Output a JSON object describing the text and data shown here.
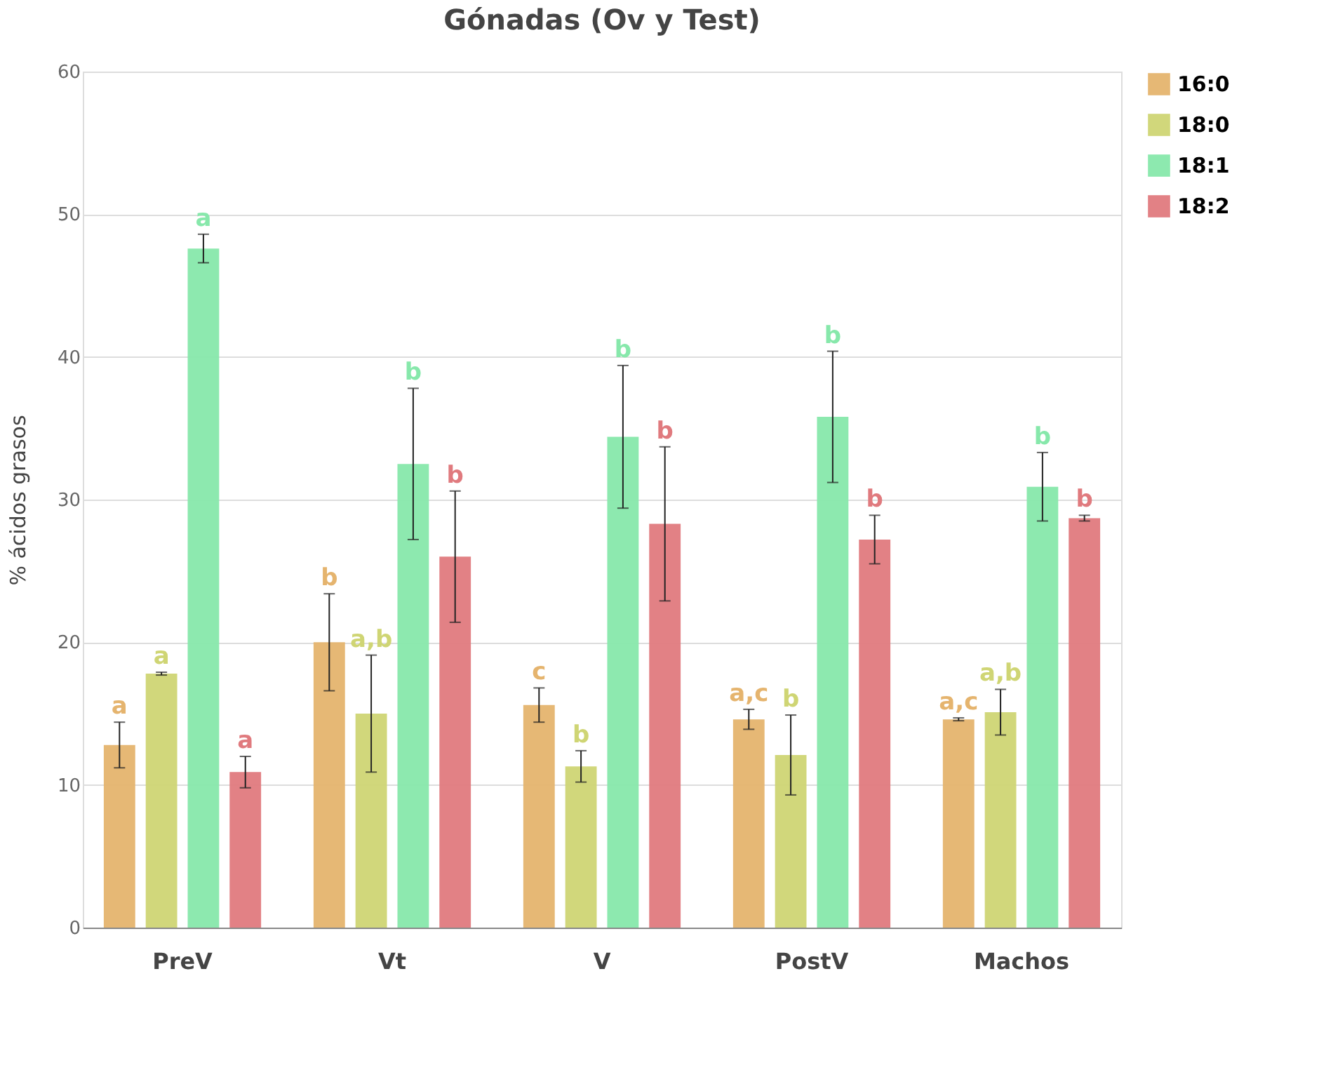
{
  "chart_data": {
    "type": "bar",
    "title": "Gónadas (Ov y Test)",
    "ylabel": "% ácidos grasos",
    "categories": [
      "PreV",
      "Vt",
      "V",
      "PostV",
      "Machos"
    ],
    "series": [
      {
        "name": "16:0",
        "color": "#e5b46e",
        "values": [
          12.8,
          20.0,
          15.6,
          14.6,
          14.6
        ],
        "errors": [
          1.6,
          3.4,
          1.2,
          0.7,
          0.1
        ]
      },
      {
        "name": "18:0",
        "color": "#cfd574",
        "values": [
          17.8,
          15.0,
          11.3,
          12.1,
          15.1
        ],
        "errors": [
          0.1,
          4.1,
          1.1,
          2.8,
          1.6
        ]
      },
      {
        "name": "18:1",
        "color": "#87e8ab",
        "values": [
          47.6,
          32.5,
          34.4,
          35.8,
          30.9
        ],
        "errors": [
          1.0,
          5.3,
          5.0,
          4.6,
          2.4
        ]
      },
      {
        "name": "18:2",
        "color": "#e07a7e",
        "values": [
          10.9,
          26.0,
          28.3,
          27.2,
          28.7
        ],
        "errors": [
          1.1,
          4.6,
          5.4,
          1.7,
          0.2
        ]
      }
    ],
    "annotations": [
      "a",
      "a",
      "a",
      "a",
      "b",
      "a,b",
      "b",
      "b",
      "c",
      "b",
      "b",
      "b",
      "a,c",
      "b",
      "b",
      "b",
      "a,c",
      "a,b",
      "b",
      "b"
    ],
    "ylim": [
      0,
      60
    ],
    "yticks": [
      0,
      10,
      20,
      30,
      40,
      50,
      60
    ],
    "grid": "y",
    "legend": "right"
  }
}
